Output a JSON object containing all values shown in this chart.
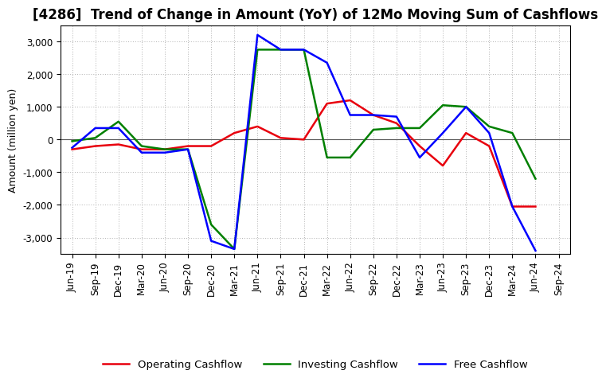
{
  "title": "[4286]  Trend of Change in Amount (YoY) of 12Mo Moving Sum of Cashflows",
  "ylabel": "Amount (million yen)",
  "x_labels": [
    "Jun-19",
    "Sep-19",
    "Dec-19",
    "Mar-20",
    "Jun-20",
    "Sep-20",
    "Dec-20",
    "Mar-21",
    "Jun-21",
    "Sep-21",
    "Dec-21",
    "Mar-22",
    "Jun-22",
    "Sep-22",
    "Dec-22",
    "Mar-23",
    "Jun-23",
    "Sep-23",
    "Dec-23",
    "Mar-24",
    "Jun-24",
    "Sep-24"
  ],
  "operating": [
    -300,
    -200,
    -150,
    -300,
    -300,
    -200,
    -200,
    200,
    400,
    50,
    0,
    1100,
    1200,
    750,
    500,
    -200,
    -800,
    200,
    -200,
    -2050,
    -2050,
    null
  ],
  "investing": [
    -50,
    50,
    550,
    -200,
    -300,
    -300,
    -2600,
    -3350,
    2750,
    2750,
    2750,
    -550,
    -550,
    300,
    350,
    350,
    1050,
    1000,
    400,
    200,
    -1200,
    null
  ],
  "free": [
    -250,
    350,
    350,
    -400,
    -400,
    -300,
    -3100,
    -3350,
    3200,
    2750,
    2750,
    2350,
    750,
    750,
    700,
    -550,
    200,
    1000,
    200,
    -2050,
    -3400,
    null
  ],
  "colors": {
    "operating": "#e8000d",
    "investing": "#008000",
    "free": "#0000ff"
  },
  "ylim": [
    -3500,
    3500
  ],
  "yticks": [
    -3000,
    -2000,
    -1000,
    0,
    1000,
    2000,
    3000
  ],
  "background_color": "#ffffff",
  "grid_color": "#b0b0b0",
  "title_fontsize": 12,
  "axis_fontsize": 8.5,
  "ylabel_fontsize": 9,
  "legend_fontsize": 9.5,
  "linewidth": 1.8
}
